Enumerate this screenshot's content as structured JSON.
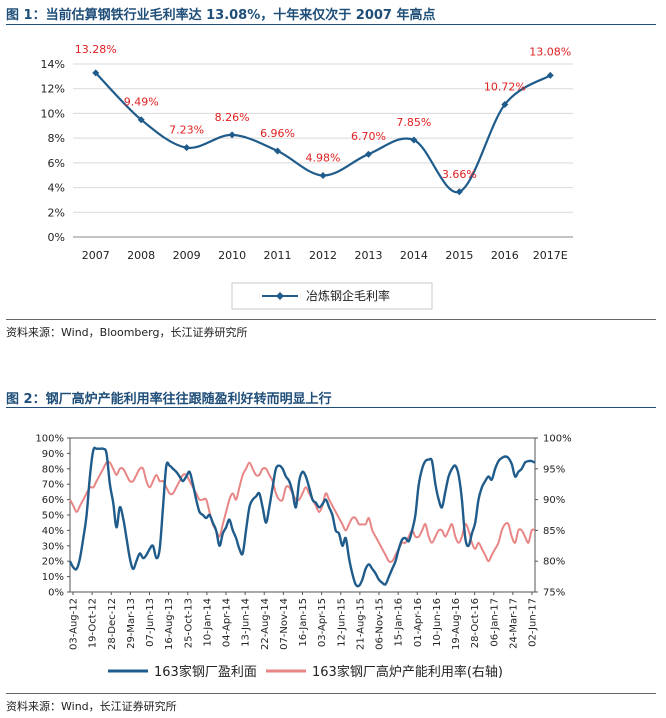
{
  "figure1": {
    "title": "图 1：当前估算钢铁行业毛利率达 13.08%，十年来仅次于 2007 年高点",
    "source": "资料来源：Wind，Bloomberg，长江证券研究所"
  },
  "figure2": {
    "title": "图 2：钢厂高炉产能利用率往往跟随盈利好转而明显上行",
    "source": "资料来源：Wind，长江证券研究所"
  },
  "chart_data": [
    {
      "type": "line",
      "title": "图 1：当前估算钢铁行业毛利率达 13.08%，十年来仅次于 2007 年高点",
      "categories": [
        "2007",
        "2008",
        "2009",
        "2010",
        "2011",
        "2012",
        "2013",
        "2014",
        "2015",
        "2016",
        "2017E"
      ],
      "series": [
        {
          "name": "冶炼钢企毛利率",
          "color": "#1f5c8b",
          "values": [
            13.28,
            9.49,
            7.23,
            8.26,
            6.96,
            4.98,
            6.7,
            7.85,
            3.66,
            10.72,
            13.08
          ],
          "labels": [
            "13.28%",
            "9.49%",
            "7.23%",
            "8.26%",
            "6.96%",
            "4.98%",
            "6.70%",
            "7.85%",
            "3.66%",
            "10.72%",
            "13.08%"
          ]
        }
      ],
      "label_color": "#e02020",
      "yticks": [
        "0%",
        "2%",
        "4%",
        "6%",
        "8%",
        "10%",
        "12%",
        "14%"
      ],
      "ylim": [
        0,
        14
      ],
      "legend": "bottom-center",
      "grid": true
    },
    {
      "type": "line",
      "title": "图 2：钢厂高炉产能利用率往往跟随盈利好转而明显上行",
      "x_ticks": [
        "03-Aug-12",
        "19-Oct-12",
        "28-Dec-12",
        "29-Mar-13",
        "07-Jun-13",
        "16-Aug-13",
        "25-Oct-13",
        "10-Jan-14",
        "04-Apr-14",
        "13-Jun-14",
        "22-Aug-14",
        "07-Nov-14",
        "16-Jan-15",
        "03-Apr-15",
        "12-Jun-15",
        "21-Aug-15",
        "06-Nov-15",
        "15-Jan-16",
        "01-Apr-16",
        "10-Jun-16",
        "19-Aug-16",
        "28-Oct-16",
        "06-Jan-17",
        "24-Mar-17",
        "02-Jun-17"
      ],
      "yticks_left": [
        "0%",
        "10%",
        "20%",
        "30%",
        "40%",
        "50%",
        "60%",
        "70%",
        "80%",
        "90%",
        "100%"
      ],
      "yticks_right": [
        "75%",
        "80%",
        "85%",
        "90%",
        "95%",
        "100%"
      ],
      "ylim_left": [
        0,
        100
      ],
      "ylim_right": [
        75,
        100
      ],
      "legend": "bottom",
      "grid": false,
      "series": [
        {
          "name": "163家钢厂盈利面",
          "axis": "left",
          "color": "#1f5c8b",
          "values": [
            20,
            16,
            15,
            22,
            35,
            50,
            75,
            92,
            93,
            93,
            93,
            90,
            70,
            58,
            42,
            55,
            48,
            35,
            22,
            15,
            20,
            25,
            22,
            24,
            28,
            30,
            22,
            28,
            55,
            82,
            82,
            80,
            78,
            75,
            72,
            75,
            78,
            70,
            60,
            52,
            50,
            48,
            50,
            45,
            40,
            30,
            38,
            42,
            47,
            40,
            35,
            28,
            25,
            40,
            55,
            60,
            62,
            64,
            55,
            45,
            55,
            68,
            80,
            82,
            80,
            75,
            72,
            65,
            55,
            72,
            78,
            75,
            68,
            60,
            58,
            55,
            57,
            60,
            55,
            50,
            40,
            38,
            30,
            35,
            22,
            12,
            5,
            4,
            8,
            15,
            18,
            15,
            12,
            8,
            6,
            5,
            10,
            15,
            20,
            28,
            34,
            35,
            33,
            40,
            50,
            70,
            80,
            85,
            86,
            85,
            70,
            60,
            55,
            65,
            75,
            80,
            82,
            76,
            60,
            35,
            30,
            38,
            45,
            60,
            68,
            72,
            75,
            73,
            80,
            85,
            87,
            88,
            87,
            83,
            75,
            78,
            80,
            84,
            85,
            85,
            84
          ]
        },
        {
          "name": "163家钢厂高炉产能利用率(右轴)",
          "axis": "right",
          "color": "#e88585",
          "values": [
            90,
            89,
            88,
            89,
            90,
            91,
            92,
            92,
            93,
            94,
            95,
            96,
            96,
            95,
            94,
            95,
            95,
            94,
            93,
            93,
            94,
            95,
            95,
            93,
            92,
            93,
            94,
            93,
            93,
            92,
            91,
            91,
            92,
            93,
            94,
            94,
            93,
            92,
            91,
            90,
            90,
            90,
            88,
            86,
            85,
            84,
            86,
            88,
            90,
            91,
            90,
            92,
            94,
            95,
            96,
            95,
            94,
            94,
            95,
            95,
            94,
            93,
            91,
            90,
            90,
            92,
            92,
            91,
            90,
            90,
            91,
            92,
            91,
            90,
            89,
            88,
            89,
            91,
            90,
            89,
            88,
            87,
            86,
            85,
            86,
            87,
            87,
            86,
            86,
            86,
            87,
            85,
            84,
            83,
            82,
            81,
            80,
            80,
            81,
            82,
            83,
            83,
            84,
            85,
            84,
            84,
            85,
            86,
            84,
            83,
            84,
            85,
            85,
            84,
            85,
            86,
            84,
            83,
            84,
            86,
            85,
            83,
            82,
            83,
            82,
            81,
            80,
            81,
            82,
            83,
            85,
            86,
            86,
            84,
            83,
            85,
            85,
            84,
            83,
            85,
            85
          ]
        }
      ]
    }
  ]
}
